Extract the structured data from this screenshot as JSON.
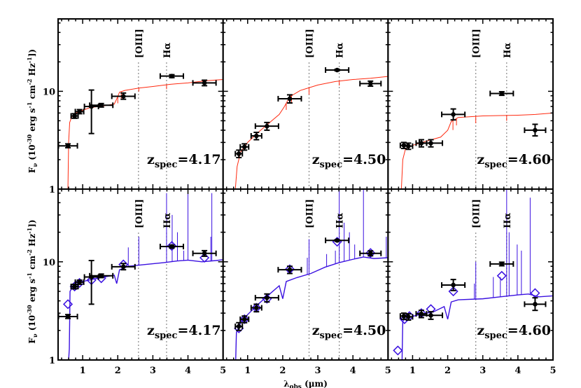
{
  "chart_data": {
    "type": "scatter",
    "xlabel": "λobs (µm)",
    "xlabel_main": "λ",
    "xlabel_sub": "obs",
    "xlabel_unit": " (µm)",
    "ylabel": "Fν (10^-30 erg s^-1 cm^-2 Hz^-1)",
    "ylabel_parts": {
      "F": "F",
      "nu": "ν",
      "a": " (10",
      "e1": "-30",
      "b": " erg s",
      "e2": "-1",
      "c": " cm",
      "e3": "-2",
      "d": " Hz",
      "e4": "-1",
      "f": "])"
    },
    "xlim": [
      0.3,
      5
    ],
    "ylim": [
      1,
      55
    ],
    "yscale": "log",
    "grid": false,
    "xticks": [
      "1",
      "2",
      "3",
      "4",
      "5"
    ],
    "yticks": [
      "1",
      "10"
    ],
    "line_labels": {
      "oiii": "[OIII]",
      "halpha": "Hα"
    },
    "colors": {
      "top_model": "#ff2a10",
      "bottom_model": "#3a10e0",
      "data": "#000000",
      "model_phot": "#3a10e0",
      "line_marker": "#888888"
    },
    "panels": [
      {
        "row": "top",
        "z_label": "4.17",
        "z_prefix": "z",
        "z_sub": "spec",
        "z_eq": "=",
        "oiii": 2.59,
        "halpha": 3.39,
        "points": [
          {
            "x": 0.58,
            "y": 2.77,
            "xerr": 0.27,
            "ylo": 2.65,
            "yhi": 2.9
          },
          {
            "x": 0.77,
            "y": 5.6,
            "xerr": 0.1,
            "ylo": 5.3,
            "yhi": 5.9
          },
          {
            "x": 0.91,
            "y": 6.2,
            "xerr": 0.12,
            "ylo": 5.9,
            "yhi": 6.5
          },
          {
            "x": 1.25,
            "y": 7.0,
            "xerr": 0.2,
            "ylo": 3.7,
            "yhi": 10.3
          },
          {
            "x": 1.53,
            "y": 7.2,
            "xerr": 0.33,
            "ylo": 6.9,
            "yhi": 7.5
          },
          {
            "x": 2.16,
            "y": 8.9,
            "xerr": 0.33,
            "ylo": 8.3,
            "yhi": 9.6
          },
          {
            "x": 3.54,
            "y": 14.3,
            "xerr": 0.33,
            "ylo": 13.8,
            "yhi": 14.8
          },
          {
            "x": 4.47,
            "y": 12.2,
            "xerr": 0.33,
            "ylo": 11.4,
            "yhi": 13.0
          }
        ],
        "model_phot": [],
        "model": [
          [
            0.58,
            1
          ],
          [
            0.6,
            3
          ],
          [
            0.63,
            4.8
          ],
          [
            0.7,
            5.6
          ],
          [
            0.85,
            6.1
          ],
          [
            1.2,
            6.8
          ],
          [
            1.6,
            7.1
          ],
          [
            1.9,
            7.4
          ],
          [
            1.98,
            8.5
          ],
          [
            2.05,
            9.8
          ],
          [
            2.2,
            10.2
          ],
          [
            2.6,
            10.8
          ],
          [
            3.0,
            11.2
          ],
          [
            3.5,
            11.8
          ],
          [
            4.0,
            12.2
          ],
          [
            4.5,
            12.8
          ],
          [
            5.0,
            13.2
          ]
        ],
        "lines": [
          [
            2.6,
            0.92
          ],
          [
            3.39,
            0.9
          ],
          [
            2.0,
            0.85
          ],
          [
            2.1,
            0.85
          ]
        ]
      },
      {
        "row": "top",
        "z_label": "4.50",
        "z_prefix": "z",
        "z_sub": "spec",
        "z_eq": "=",
        "oiii": 2.75,
        "halpha": 3.61,
        "points": [
          {
            "x": 0.75,
            "y": 2.3,
            "xerr": 0.1,
            "ylo": 2.1,
            "yhi": 2.5
          },
          {
            "x": 0.91,
            "y": 2.7,
            "xerr": 0.12,
            "ylo": 2.5,
            "yhi": 2.9
          },
          {
            "x": 1.25,
            "y": 3.5,
            "xerr": 0.15,
            "ylo": 3.2,
            "yhi": 3.8
          },
          {
            "x": 1.55,
            "y": 4.4,
            "xerr": 0.33,
            "ylo": 4.0,
            "yhi": 4.8
          },
          {
            "x": 2.2,
            "y": 8.4,
            "xerr": 0.33,
            "ylo": 7.6,
            "yhi": 9.2
          },
          {
            "x": 3.55,
            "y": 16.5,
            "xerr": 0.33,
            "ylo": 16.2,
            "yhi": 16.8
          },
          {
            "x": 4.5,
            "y": 12.0,
            "xerr": 0.3,
            "ylo": 11.3,
            "yhi": 12.7
          }
        ],
        "model_phot": [],
        "model": [
          [
            0.65,
            1
          ],
          [
            0.7,
            1.7
          ],
          [
            0.8,
            2.4
          ],
          [
            1.0,
            3.0
          ],
          [
            1.3,
            3.8
          ],
          [
            1.6,
            4.7
          ],
          [
            1.9,
            5.8
          ],
          [
            2.05,
            7.0
          ],
          [
            2.2,
            8.8
          ],
          [
            2.5,
            10.2
          ],
          [
            3.0,
            11.6
          ],
          [
            3.5,
            12.6
          ],
          [
            4.0,
            13.2
          ],
          [
            4.5,
            13.6
          ],
          [
            5.0,
            14.2
          ]
        ],
        "lines": [
          [
            2.75,
            0.85
          ],
          [
            3.61,
            0.9
          ],
          [
            2.1,
            0.85
          ],
          [
            2.25,
            0.85
          ]
        ]
      },
      {
        "row": "top",
        "z_label": "4.60",
        "z_prefix": "z",
        "z_sub": "spec",
        "z_eq": "=",
        "oiii": 2.8,
        "halpha": 3.68,
        "points": [
          {
            "x": 0.75,
            "y": 2.8,
            "xerr": 0.1,
            "ylo": 2.6,
            "yhi": 3.0
          },
          {
            "x": 0.88,
            "y": 2.75,
            "xerr": 0.12,
            "ylo": 2.55,
            "yhi": 2.95
          },
          {
            "x": 1.25,
            "y": 2.95,
            "xerr": 0.15,
            "ylo": 2.7,
            "yhi": 3.2
          },
          {
            "x": 1.52,
            "y": 2.95,
            "xerr": 0.33,
            "ylo": 2.7,
            "yhi": 3.2
          },
          {
            "x": 2.16,
            "y": 5.8,
            "xerr": 0.33,
            "ylo": 5.1,
            "yhi": 6.6
          },
          {
            "x": 3.54,
            "y": 9.5,
            "xerr": 0.33,
            "ylo": 9.1,
            "yhi": 9.9
          },
          {
            "x": 4.49,
            "y": 4.0,
            "xerr": 0.3,
            "ylo": 3.5,
            "yhi": 4.6
          }
        ],
        "model_phot": [],
        "model": [
          [
            0.68,
            1
          ],
          [
            0.72,
            2.0
          ],
          [
            0.8,
            2.6
          ],
          [
            1.0,
            2.8
          ],
          [
            1.4,
            3.1
          ],
          [
            1.8,
            3.4
          ],
          [
            2.0,
            4.0
          ],
          [
            2.1,
            4.9
          ],
          [
            2.3,
            5.4
          ],
          [
            3.0,
            5.6
          ],
          [
            4.0,
            5.7
          ],
          [
            4.5,
            5.8
          ],
          [
            5.0,
            6.0
          ]
        ],
        "lines": [
          [
            2.8,
            0.85
          ],
          [
            3.68,
            0.88
          ],
          [
            2.15,
            0.8
          ],
          [
            2.25,
            0.85
          ]
        ]
      },
      {
        "row": "bottom",
        "z_label": "4.17",
        "z_prefix": "z",
        "z_sub": "spec",
        "z_eq": "=",
        "oiii": 2.59,
        "halpha": 3.39,
        "points": [
          {
            "x": 0.58,
            "y": 2.77,
            "xerr": 0.27,
            "ylo": 2.65,
            "yhi": 2.9
          },
          {
            "x": 0.77,
            "y": 5.6,
            "xerr": 0.1,
            "ylo": 5.3,
            "yhi": 5.9
          },
          {
            "x": 0.91,
            "y": 6.2,
            "xerr": 0.12,
            "ylo": 5.9,
            "yhi": 6.5
          },
          {
            "x": 1.25,
            "y": 7.0,
            "xerr": 0.2,
            "ylo": 3.7,
            "yhi": 10.3
          },
          {
            "x": 1.53,
            "y": 7.2,
            "xerr": 0.33,
            "ylo": 6.9,
            "yhi": 7.5
          },
          {
            "x": 2.16,
            "y": 8.9,
            "xerr": 0.33,
            "ylo": 8.3,
            "yhi": 9.6
          },
          {
            "x": 3.54,
            "y": 14.3,
            "xerr": 0.33,
            "ylo": 13.8,
            "yhi": 14.8
          },
          {
            "x": 4.47,
            "y": 12.2,
            "xerr": 0.33,
            "ylo": 11.4,
            "yhi": 13.0
          }
        ],
        "model_phot": [
          [
            0.58,
            3.7
          ],
          [
            0.77,
            5.6
          ],
          [
            0.91,
            6.1
          ],
          [
            1.25,
            6.5
          ],
          [
            1.53,
            6.8
          ],
          [
            2.16,
            9.4
          ],
          [
            3.54,
            14.5
          ],
          [
            4.47,
            11.0
          ]
        ],
        "model": [
          [
            0.6,
            1
          ],
          [
            0.62,
            1.3
          ],
          [
            0.64,
            5.0
          ],
          [
            0.75,
            5.8
          ],
          [
            1.0,
            6.3
          ],
          [
            1.5,
            6.9
          ],
          [
            1.9,
            7.3
          ],
          [
            1.97,
            6.0
          ],
          [
            2.05,
            8.3
          ],
          [
            2.3,
            9.0
          ],
          [
            2.8,
            9.4
          ],
          [
            3.3,
            9.8
          ],
          [
            3.7,
            10.2
          ],
          [
            4.0,
            10.4
          ],
          [
            4.4,
            10.0
          ],
          [
            4.8,
            10.3
          ],
          [
            5.0,
            10.5
          ]
        ],
        "lines": [
          [
            2.6,
            18
          ],
          [
            3.39,
            50
          ],
          [
            3.55,
            30
          ],
          [
            3.7,
            20
          ],
          [
            3.88,
            13
          ],
          [
            4.0,
            50
          ],
          [
            4.68,
            50
          ],
          [
            4.65,
            18
          ],
          [
            2.3,
            14
          ]
        ]
      },
      {
        "row": "bottom",
        "z_label": "4.50",
        "z_prefix": "z",
        "z_sub": "spec",
        "z_eq": "=",
        "oiii": 2.75,
        "halpha": 3.61,
        "points": [
          {
            "x": 0.75,
            "y": 2.2,
            "xerr": 0.1,
            "ylo": 2.0,
            "yhi": 2.4
          },
          {
            "x": 0.91,
            "y": 2.6,
            "xerr": 0.12,
            "ylo": 2.4,
            "yhi": 2.8
          },
          {
            "x": 1.25,
            "y": 3.4,
            "xerr": 0.15,
            "ylo": 3.1,
            "yhi": 3.7
          },
          {
            "x": 1.55,
            "y": 4.3,
            "xerr": 0.33,
            "ylo": 3.9,
            "yhi": 4.7
          },
          {
            "x": 2.2,
            "y": 8.3,
            "xerr": 0.33,
            "ylo": 7.6,
            "yhi": 9.0
          },
          {
            "x": 3.55,
            "y": 16.5,
            "xerr": 0.33,
            "ylo": 16.2,
            "yhi": 16.8
          },
          {
            "x": 4.5,
            "y": 12.2,
            "xerr": 0.3,
            "ylo": 11.5,
            "yhi": 12.9
          }
        ],
        "model_phot": [
          [
            0.75,
            2.1
          ],
          [
            0.91,
            2.6
          ],
          [
            1.25,
            3.4
          ],
          [
            1.55,
            4.2
          ],
          [
            2.2,
            8.4
          ],
          [
            3.55,
            16.0
          ],
          [
            4.5,
            12.3
          ]
        ],
        "model": [
          [
            0.66,
            1
          ],
          [
            0.68,
            1.9
          ],
          [
            0.8,
            2.4
          ],
          [
            1.0,
            2.9
          ],
          [
            1.3,
            3.7
          ],
          [
            1.6,
            4.6
          ],
          [
            1.9,
            5.7
          ],
          [
            2.0,
            4.2
          ],
          [
            2.1,
            6.3
          ],
          [
            2.4,
            6.9
          ],
          [
            2.8,
            7.6
          ],
          [
            3.2,
            8.8
          ],
          [
            3.6,
            9.8
          ],
          [
            4.0,
            10.6
          ],
          [
            4.3,
            11.2
          ],
          [
            4.6,
            10.8
          ],
          [
            5.0,
            11.0
          ]
        ],
        "lines": [
          [
            2.75,
            17
          ],
          [
            2.7,
            11
          ],
          [
            3.25,
            12
          ],
          [
            3.5,
            13
          ],
          [
            3.61,
            55
          ],
          [
            3.75,
            25
          ],
          [
            3.9,
            20
          ],
          [
            4.05,
            15
          ],
          [
            4.3,
            55
          ],
          [
            4.95,
            18
          ]
        ]
      },
      {
        "row": "bottom",
        "z_label": "4.60",
        "z_prefix": "z",
        "z_sub": "spec",
        "z_eq": "=",
        "oiii": 2.8,
        "halpha": 3.68,
        "points": [
          {
            "x": 0.75,
            "y": 2.8,
            "xerr": 0.1,
            "ylo": 2.6,
            "yhi": 3.0
          },
          {
            "x": 0.88,
            "y": 2.75,
            "xerr": 0.12,
            "ylo": 2.55,
            "yhi": 2.95
          },
          {
            "x": 1.25,
            "y": 2.95,
            "xerr": 0.15,
            "ylo": 2.7,
            "yhi": 3.2
          },
          {
            "x": 1.52,
            "y": 2.85,
            "xerr": 0.33,
            "ylo": 2.6,
            "yhi": 3.1
          },
          {
            "x": 2.16,
            "y": 5.8,
            "xerr": 0.33,
            "ylo": 5.1,
            "yhi": 6.6
          },
          {
            "x": 3.54,
            "y": 9.5,
            "xerr": 0.33,
            "ylo": 9.1,
            "yhi": 9.9
          },
          {
            "x": 4.49,
            "y": 3.7,
            "xerr": 0.3,
            "ylo": 3.2,
            "yhi": 4.3
          }
        ],
        "model_phot": [
          [
            0.58,
            1.25
          ],
          [
            0.77,
            2.6
          ],
          [
            0.91,
            2.8
          ],
          [
            1.25,
            3.0
          ],
          [
            1.52,
            3.3
          ],
          [
            2.16,
            5.0
          ],
          [
            3.54,
            7.2
          ],
          [
            4.49,
            4.8
          ]
        ],
        "model": [
          [
            0.7,
            1
          ],
          [
            0.72,
            2.5
          ],
          [
            0.85,
            2.7
          ],
          [
            1.2,
            2.9
          ],
          [
            1.6,
            3.1
          ],
          [
            1.9,
            3.5
          ],
          [
            2.0,
            2.6
          ],
          [
            2.1,
            3.9
          ],
          [
            2.3,
            4.1
          ],
          [
            3.0,
            4.2
          ],
          [
            3.5,
            4.4
          ],
          [
            4.0,
            4.6
          ],
          [
            4.3,
            4.7
          ],
          [
            4.6,
            4.4
          ],
          [
            5.0,
            4.5
          ]
        ],
        "lines": [
          [
            2.8,
            10
          ],
          [
            2.76,
            6
          ],
          [
            3.3,
            7
          ],
          [
            3.5,
            7
          ],
          [
            3.68,
            55
          ],
          [
            3.75,
            20
          ],
          [
            3.98,
            15
          ],
          [
            4.1,
            13
          ],
          [
            4.35,
            45
          ]
        ]
      }
    ]
  }
}
